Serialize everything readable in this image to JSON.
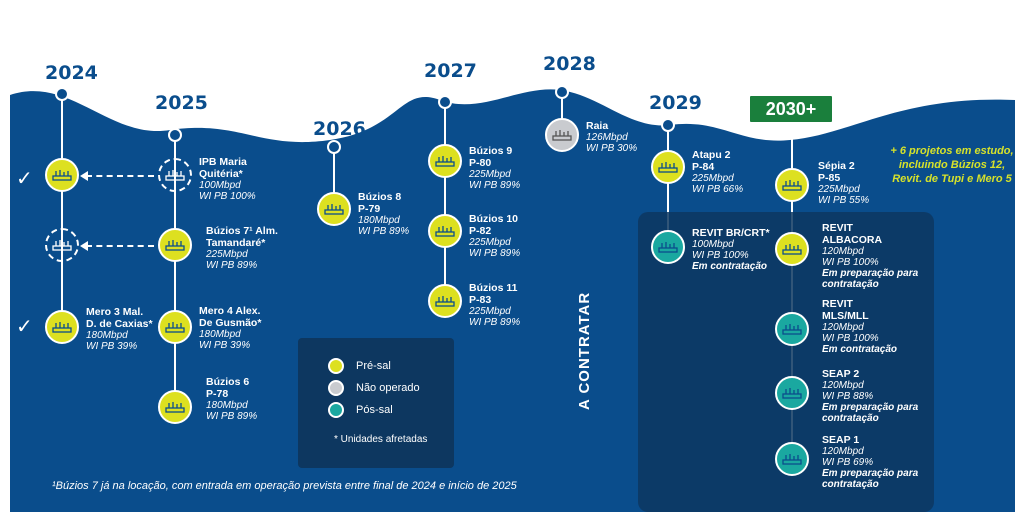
{
  "years": [
    "2024",
    "2025",
    "2026",
    "2027",
    "2028",
    "2029",
    "2030+"
  ],
  "colors": {
    "pre_sal": "#dde020",
    "nao_operado": "#c9cbcf",
    "pos_sal": "#1aa8a0",
    "ocean": "#0a4d8c",
    "badge": "#1a7f3c"
  },
  "units": {
    "ipb": {
      "name": "IPB Maria Quitéria*",
      "l1": "100Mbpd",
      "l2": "WI PB 100%"
    },
    "buzios7": {
      "name": "Búzios 7¹ Alm. Tamandaré*",
      "l1": "225Mbpd",
      "l2": "WI PB 89%"
    },
    "mero3": {
      "name": "Mero 3 Mal. D. de Caxias*",
      "l1": "180Mbpd",
      "l2": "WI PB 39%"
    },
    "mero4": {
      "name": "Mero 4 Alex. De Gusmão*",
      "l1": "180Mbpd",
      "l2": "WI PB 39%"
    },
    "buzios6": {
      "name": "Búzios 6 P-78",
      "l1": "180Mbpd",
      "l2": "WI PB 89%"
    },
    "buzios8": {
      "name": "Búzios 8 P-79",
      "l1": "180Mbpd",
      "l2": "WI PB 89%"
    },
    "buzios9": {
      "name": "Búzios 9 P-80",
      "l1": "225Mbpd",
      "l2": "WI PB 89%"
    },
    "buzios10": {
      "name": "Búzios 10 P-82",
      "l1": "225Mbpd",
      "l2": "WI PB 89%"
    },
    "buzios11": {
      "name": "Búzios 11 P-83",
      "l1": "225Mbpd",
      "l2": "WI PB 89%"
    },
    "raia": {
      "name": "Raia",
      "l1": "126Mbpd",
      "l2": "WI PB 30%"
    },
    "atapu2": {
      "name": "Atapu 2 P-84",
      "l1": "225Mbpd",
      "l2": "WI PB 66%"
    },
    "sepia2": {
      "name": "Sépia 2 P-85",
      "l1": "225Mbpd",
      "l2": "WI PB 55%"
    },
    "revitbr": {
      "name": "REVIT BR/CRT*",
      "l1": "100Mbpd",
      "l2": "WI PB 100%",
      "l3": "Em contratação"
    },
    "albacora": {
      "name": "REVIT ALBACORA",
      "l1": "120Mbpd",
      "l2": "WI PB 100%",
      "l3": "Em preparação para contratação"
    },
    "mls": {
      "name": "REVIT MLS/MLL",
      "l1": "120Mbpd",
      "l2": "WI PB 100%",
      "l3": "Em contratação"
    },
    "seap2": {
      "name": "SEAP 2",
      "l1": "120Mbpd",
      "l2": "WI PB 88%",
      "l3": "Em preparação para contratação"
    },
    "seap1": {
      "name": "SEAP 1",
      "l1": "120Mbpd",
      "l2": "WI PB 69%",
      "l3": "Em preparação para contratação"
    }
  },
  "extra_projects": "+ 6 projetos em estudo, incluindo Búzios 12, Revit. de Tupi e Mero 5",
  "legend": {
    "pre": "Pré-sal",
    "nao": "Não operado",
    "pos": "Pós-sal",
    "note": "* Unidades afretadas"
  },
  "contratar": "A CONTRATAR",
  "footnote": "¹Búzios 7 já na locação, com entrada em operação prevista entre final de 2024 e início de 2025"
}
